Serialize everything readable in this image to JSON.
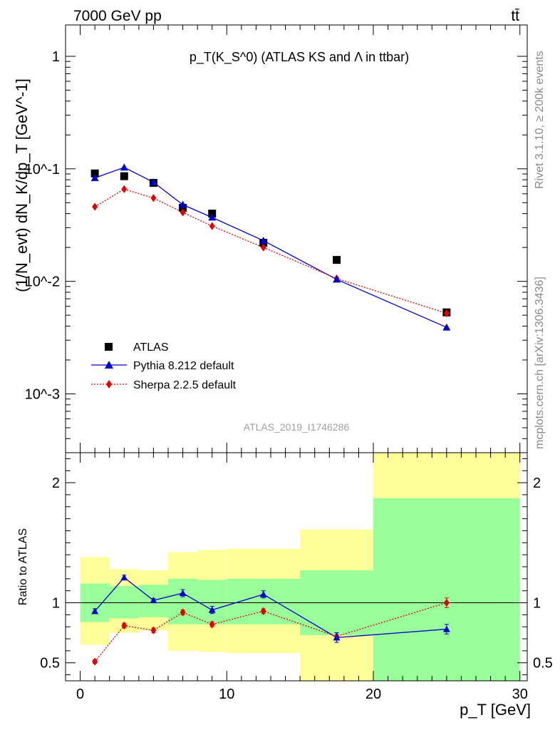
{
  "header": {
    "left": "7000 GeV pp",
    "right": "tt̄"
  },
  "side_labels": {
    "rivet": "Rivet 3.1.10, ≥ 200k events",
    "mcplots": "mcplots.cern.ch [arXiv:1306.3436]"
  },
  "analysis_id": "ATLAS_2019_I1746286",
  "colors": {
    "atlas": "#000000",
    "pythia": "#0000cc",
    "sherpa": "#e00000",
    "band_green": "#99ff99",
    "band_yellow": "#ffff99"
  },
  "chart_data": [
    {
      "type": "scatter",
      "title": "p_T(K_S^0) (ATLAS KS and Λ in ttbar)",
      "ylabel": "(1/N_evt) dN_K/dp_T [GeV^-1]",
      "yscale": "log",
      "xlim": [
        -1,
        30.5
      ],
      "ylim": [
        0.0003,
        1.9
      ],
      "ytick_labels": [
        "10^-3",
        "10^-2",
        "10^-1",
        "1"
      ],
      "legend_position": "bottom-left",
      "series": [
        {
          "name": "ATLAS",
          "marker": "square",
          "x": [
            1,
            3,
            5,
            7,
            9,
            12.5,
            17.5,
            25
          ],
          "y": [
            0.091,
            0.086,
            0.075,
            0.045,
            0.04,
            0.022,
            0.0155,
            0.0053
          ]
        },
        {
          "name": "Pythia 8.212 default",
          "marker": "triangle",
          "line": "solid",
          "x": [
            1,
            3,
            5,
            7,
            9,
            12.5,
            17.5,
            25
          ],
          "y": [
            0.083,
            0.103,
            0.076,
            0.048,
            0.037,
            0.023,
            0.0104,
            0.0039
          ]
        },
        {
          "name": "Sherpa 2.2.5 default",
          "marker": "diamond",
          "line": "dotted",
          "x": [
            1,
            3,
            5,
            7,
            9,
            12.5,
            17.5,
            25
          ],
          "y": [
            0.046,
            0.066,
            0.055,
            0.041,
            0.031,
            0.02,
            0.0106,
            0.0052
          ]
        }
      ]
    },
    {
      "type": "scatter",
      "ylabel": "Ratio to ATLAS",
      "xlabel": "p_T [GeV]",
      "xlim": [
        -1,
        30.5
      ],
      "ylim": [
        0.35,
        2.25
      ],
      "xticks": [
        0,
        10,
        20,
        30
      ],
      "yticks": [
        0.5,
        1,
        2
      ],
      "ytick_labels": [
        "0.5",
        "1",
        "2"
      ],
      "bands": [
        {
          "x_lo": 0,
          "x_hi": 2,
          "green_lo": 0.84,
          "green_hi": 1.16,
          "yellow_lo": 0.65,
          "yellow_hi": 1.38
        },
        {
          "x_lo": 2,
          "x_hi": 4,
          "green_lo": 0.87,
          "green_hi": 1.14,
          "yellow_lo": 0.75,
          "yellow_hi": 1.28
        },
        {
          "x_lo": 4,
          "x_hi": 6,
          "green_lo": 0.88,
          "green_hi": 1.15,
          "yellow_lo": 0.77,
          "yellow_hi": 1.27
        },
        {
          "x_lo": 6,
          "x_hi": 8,
          "green_lo": 0.82,
          "green_hi": 1.2,
          "yellow_lo": 0.6,
          "yellow_hi": 1.42
        },
        {
          "x_lo": 8,
          "x_hi": 10,
          "green_lo": 0.82,
          "green_hi": 1.19,
          "yellow_lo": 0.59,
          "yellow_hi": 1.44
        },
        {
          "x_lo": 10,
          "x_hi": 15,
          "green_lo": 0.82,
          "green_hi": 1.2,
          "yellow_lo": 0.58,
          "yellow_hi": 1.45
        },
        {
          "x_lo": 15,
          "x_hi": 20,
          "green_lo": 0.73,
          "green_hi": 1.27,
          "yellow_lo": 0.35,
          "yellow_hi": 1.61
        },
        {
          "x_lo": 20,
          "x_hi": 30,
          "green_lo": 0.35,
          "green_hi": 1.87,
          "yellow_lo": 0.35,
          "yellow_hi": 2.25
        }
      ],
      "series": [
        {
          "name": "Pythia 8.212 default",
          "x": [
            1,
            3,
            5,
            7,
            9,
            12.5,
            17.5,
            25
          ],
          "y": [
            0.93,
            1.21,
            1.02,
            1.08,
            0.94,
            1.07,
            0.71,
            0.78
          ],
          "yerr": [
            0.02,
            0.02,
            0.015,
            0.03,
            0.03,
            0.03,
            0.04,
            0.04
          ]
        },
        {
          "name": "Sherpa 2.2.5 default",
          "x": [
            1,
            3,
            5,
            7,
            9,
            12.5,
            17.5,
            25
          ],
          "y": [
            0.51,
            0.81,
            0.77,
            0.92,
            0.82,
            0.93,
            0.72,
            1.0
          ],
          "yerr": [
            0.015,
            0.02,
            0.02,
            0.02,
            0.02,
            0.02,
            0.03,
            0.04
          ]
        }
      ]
    }
  ]
}
